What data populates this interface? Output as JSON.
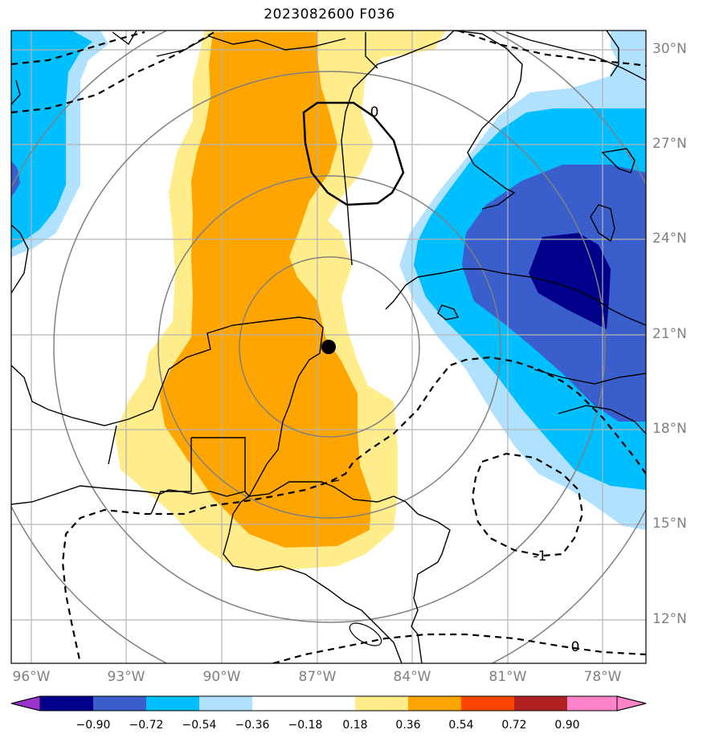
{
  "title": "2023082600 F036",
  "lat_labels": [
    "30°N",
    "27°N",
    "24°N",
    "21°N",
    "18°N",
    "15°N",
    "12°N"
  ],
  "lon_labels": [
    "96°W",
    "93°W",
    "90°W",
    "87°W",
    "84°W",
    "81°W",
    "78°W"
  ],
  "contour_labels": {
    "zero_north": "0",
    "neg_one": "-1",
    "zero_south": "0"
  },
  "colorbar": {
    "ticks": [
      "−0.90",
      "−0.72",
      "−0.54",
      "−0.36",
      "−0.18",
      "0.18",
      "0.36",
      "0.54",
      "0.72",
      "0.90"
    ],
    "colors": [
      "#9a32cd",
      "#00008b",
      "#3a5fcd",
      "#00bfff",
      "#b0e2ff",
      "#ffffff",
      "#ffec8b",
      "#ffa500",
      "#ff4500",
      "#b22222",
      "#ff83c8"
    ]
  },
  "marker": {
    "name": "center-point"
  },
  "colors": {
    "grid": "#b4b4b4",
    "rings": "#808080",
    "coast": "#000000"
  }
}
